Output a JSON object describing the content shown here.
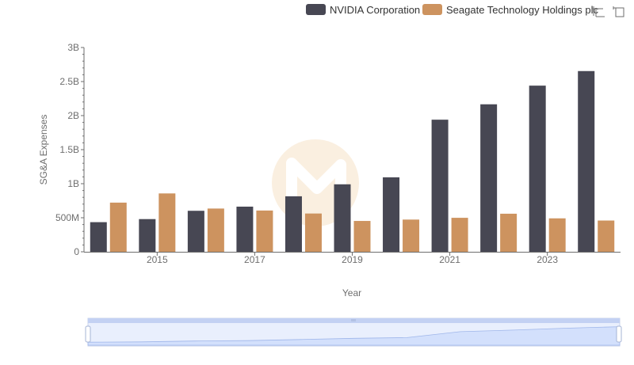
{
  "chart_data": {
    "type": "bar",
    "categories": [
      "2014",
      "2015",
      "2016",
      "2017",
      "2018",
      "2019",
      "2020",
      "2021",
      "2022",
      "2023",
      "2024"
    ],
    "x_tick_labels": [
      "2015",
      "2017",
      "2019",
      "2021",
      "2023"
    ],
    "series": [
      {
        "name": "NVIDIA Corporation",
        "color": "#474753",
        "values": [
          0.435,
          0.48,
          0.602,
          0.663,
          0.815,
          0.991,
          1.093,
          1.94,
          2.166,
          2.44,
          2.654
        ]
      },
      {
        "name": "Seagate Technology Holdings plc",
        "color": "#cd935f",
        "values": [
          0.722,
          0.857,
          0.635,
          0.606,
          0.562,
          0.453,
          0.473,
          0.499,
          0.559,
          0.491,
          0.459
        ]
      }
    ],
    "y_unit": "billions USD",
    "y_tick_labels": [
      "0",
      "500M",
      "1B",
      "1.5B",
      "2B",
      "2.5B",
      "3B"
    ],
    "ylim": [
      0,
      3
    ],
    "xlabel": "Year",
    "ylabel": "SG&A Expenses",
    "legend_position": "top-right",
    "grid": false
  },
  "toolbar": {
    "icons": [
      "zoom-icon",
      "restore-icon"
    ]
  },
  "colors": {
    "axis": "#6e6e6e",
    "slider_fill": "#d3e0fc",
    "slider_border": "#b8c6e8",
    "watermark": "#f3d5b0"
  }
}
